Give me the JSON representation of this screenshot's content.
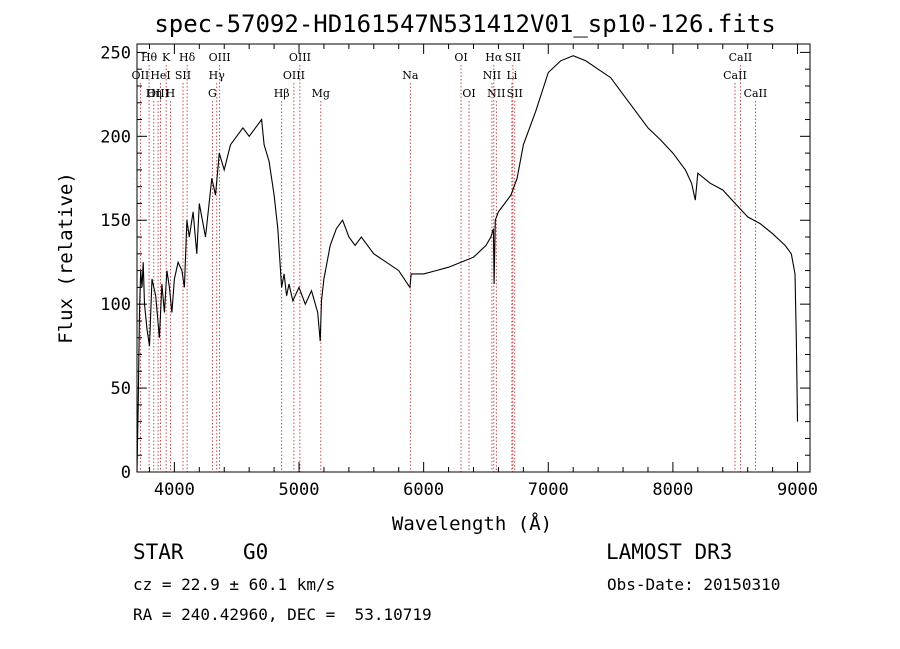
{
  "chart_data": {
    "type": "line",
    "title": "spec-57092-HD161547N531412V01_sp10-126.fits",
    "xlabel": "Wavelength (Å)",
    "ylabel": "Flux (relative)",
    "xlim": [
      3700,
      9100
    ],
    "ylim": [
      0,
      255
    ],
    "xticks": [
      4000,
      5000,
      6000,
      7000,
      8000,
      9000
    ],
    "yticks": [
      0,
      50,
      100,
      150,
      200,
      250
    ],
    "series": [
      {
        "name": "spectrum",
        "x": [
          3700,
          3710,
          3720,
          3730,
          3740,
          3750,
          3760,
          3780,
          3800,
          3820,
          3850,
          3880,
          3900,
          3920,
          3940,
          3960,
          3980,
          4000,
          4030,
          4060,
          4080,
          4100,
          4120,
          4150,
          4180,
          4200,
          4250,
          4300,
          4330,
          4360,
          4400,
          4450,
          4500,
          4550,
          4600,
          4650,
          4700,
          4720,
          4760,
          4800,
          4830,
          4860,
          4880,
          4900,
          4920,
          4950,
          5000,
          5050,
          5100,
          5150,
          5170,
          5180,
          5200,
          5250,
          5300,
          5350,
          5400,
          5450,
          5500,
          5600,
          5700,
          5800,
          5890,
          5900,
          6000,
          6100,
          6200,
          6300,
          6400,
          6500,
          6540,
          6560,
          6565,
          6575,
          6600,
          6650,
          6700,
          6750,
          6800,
          6900,
          7000,
          7100,
          7200,
          7300,
          7400,
          7500,
          7600,
          7700,
          7800,
          7900,
          8000,
          8100,
          8150,
          8180,
          8200,
          8300,
          8400,
          8500,
          8600,
          8700,
          8800,
          8900,
          8950,
          8980,
          8990,
          9000
        ],
        "y": [
          0,
          40,
          95,
          120,
          110,
          125,
          100,
          85,
          75,
          115,
          105,
          80,
          112,
          95,
          120,
          110,
          95,
          115,
          125,
          120,
          110,
          150,
          140,
          155,
          130,
          160,
          140,
          175,
          165,
          190,
          180,
          195,
          200,
          205,
          200,
          205,
          210,
          195,
          185,
          165,
          145,
          110,
          118,
          105,
          112,
          102,
          110,
          100,
          108,
          95,
          78,
          102,
          115,
          135,
          145,
          150,
          140,
          135,
          140,
          130,
          125,
          120,
          110,
          118,
          118,
          120,
          122,
          125,
          128,
          135,
          140,
          145,
          112,
          150,
          155,
          160,
          165,
          175,
          195,
          215,
          238,
          245,
          248,
          245,
          240,
          235,
          225,
          215,
          205,
          198,
          190,
          180,
          172,
          162,
          178,
          172,
          168,
          160,
          152,
          148,
          142,
          135,
          130,
          118,
          80,
          30
        ]
      }
    ],
    "line_markers": [
      {
        "label": "Hθ",
        "wl": 3797,
        "row": 0
      },
      {
        "label": "OII",
        "wl": 3727,
        "row": 1
      },
      {
        "label": "OIII",
        "wl": 3869,
        "row": 2
      },
      {
        "label": "K",
        "wl": 3934,
        "row": 0
      },
      {
        "label": "HeI",
        "wl": 3889,
        "row": 1
      },
      {
        "label": "Hη",
        "wl": 3835,
        "row": 2
      },
      {
        "label": "SII",
        "wl": 4069,
        "row": 1
      },
      {
        "label": "H",
        "wl": 3968,
        "row": 2
      },
      {
        "label": "Hδ",
        "wl": 4102,
        "row": 0
      },
      {
        "label": "OIII",
        "wl": 4363,
        "row": 0
      },
      {
        "label": "Hγ",
        "wl": 4340,
        "row": 1
      },
      {
        "label": "G",
        "wl": 4305,
        "row": 2
      },
      {
        "label": "Hβ",
        "wl": 4861,
        "row": 2
      },
      {
        "label": "OIII",
        "wl": 5007,
        "row": 0
      },
      {
        "label": "OIII",
        "wl": 4959,
        "row": 1
      },
      {
        "label": "Mg",
        "wl": 5175,
        "row": 2
      },
      {
        "label": "Na",
        "wl": 5893,
        "row": 1
      },
      {
        "label": "OI",
        "wl": 6300,
        "row": 0
      },
      {
        "label": "OI",
        "wl": 6364,
        "row": 2
      },
      {
        "label": "Hα",
        "wl": 6563,
        "row": 0
      },
      {
        "label": "NII",
        "wl": 6548,
        "row": 1
      },
      {
        "label": "NII",
        "wl": 6583,
        "row": 2
      },
      {
        "label": "SII",
        "wl": 6716,
        "row": 0
      },
      {
        "label": "Li",
        "wl": 6708,
        "row": 1
      },
      {
        "label": "SII",
        "wl": 6731,
        "row": 2
      },
      {
        "label": "CaII",
        "wl": 8542,
        "row": 0
      },
      {
        "label": "CaII",
        "wl": 8498,
        "row": 1
      },
      {
        "label": "CaII",
        "wl": 8662,
        "row": 2
      }
    ]
  },
  "info": {
    "object_class": "STAR",
    "subclass": "G0",
    "survey": "LAMOST DR3",
    "cz": "cz = 22.9 ± 60.1 km/s",
    "obs_date": "Obs-Date: 20150310",
    "coords": "RA = 240.42960, DEC =  53.10719"
  }
}
